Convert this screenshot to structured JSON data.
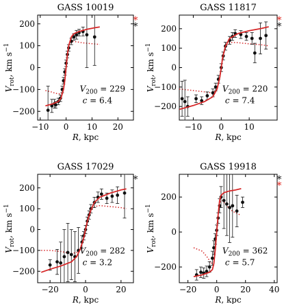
{
  "figure": {
    "colors": {
      "axis": "#000000",
      "model": "#d62728",
      "points": "#111111",
      "asterisk_red": "#e0211a",
      "asterisk_black": "#111111"
    }
  },
  "chart_data": [
    {
      "type": "scatter",
      "title": "GASS 10019",
      "xlabel": "R, kpc",
      "ylabel": "V_rot, km s^-1",
      "xlim": [
        -11,
        26
      ],
      "ylim": [
        -240,
        240
      ],
      "xticks": [
        -10,
        0,
        10,
        20
      ],
      "xtick_labels": [
        "−10",
        "0",
        "10",
        "20"
      ],
      "yticks": [
        -200,
        -100,
        0,
        100,
        200
      ],
      "ytick_labels": [
        "−200",
        "−100",
        "0",
        "100",
        "200"
      ],
      "annotation_v200": "V200 = 229",
      "annotation_v200_value": "229",
      "annotation_c": "c = 6.4",
      "annotation_c_value": "6.4",
      "asterisks": [
        "red",
        "black"
      ],
      "points": [
        {
          "x": -7,
          "y": -195,
          "err": 110
        },
        {
          "x": -5.5,
          "y": -175,
          "err": 30
        },
        {
          "x": -4.5,
          "y": -165,
          "err": 20
        },
        {
          "x": -4,
          "y": -170,
          "err": 15
        },
        {
          "x": -3,
          "y": -155,
          "err": 15
        },
        {
          "x": -2.2,
          "y": -140,
          "err": 15
        },
        {
          "x": -1.5,
          "y": -100,
          "err": 15
        },
        {
          "x": -1,
          "y": -60,
          "err": 15
        },
        {
          "x": -0.5,
          "y": -20,
          "err": 15
        },
        {
          "x": 0,
          "y": 20,
          "err": 15
        },
        {
          "x": 0.5,
          "y": 60,
          "err": 15
        },
        {
          "x": 1,
          "y": 90,
          "err": 15
        },
        {
          "x": 2,
          "y": 120,
          "err": 15
        },
        {
          "x": 3,
          "y": 140,
          "err": 15
        },
        {
          "x": 4,
          "y": 150,
          "err": 20
        },
        {
          "x": 5,
          "y": 160,
          "err": 15
        },
        {
          "x": 6.5,
          "y": 165,
          "err": 20
        },
        {
          "x": 8,
          "y": 150,
          "err": 150
        },
        {
          "x": 11,
          "y": 140,
          "err": 130
        }
      ],
      "model_curve": [
        [
          -8,
          -175
        ],
        [
          -5,
          -165
        ],
        [
          -3,
          -155
        ],
        [
          -2,
          -140
        ],
        [
          -1,
          -100
        ],
        [
          -0.5,
          -60
        ],
        [
          0,
          0
        ],
        [
          0.5,
          60
        ],
        [
          1,
          100
        ],
        [
          2,
          140
        ],
        [
          3,
          155
        ],
        [
          5,
          165
        ],
        [
          8,
          175
        ],
        [
          11,
          182
        ],
        [
          13,
          186
        ]
      ],
      "dotted_curve": [
        [
          -8,
          -105
        ],
        [
          -6,
          -110
        ],
        [
          -4,
          -118
        ],
        [
          -2,
          -120
        ],
        [
          -1,
          -100
        ],
        [
          -0.5,
          -60
        ],
        [
          0,
          0
        ],
        [
          0.5,
          60
        ],
        [
          1,
          100
        ],
        [
          2,
          120
        ],
        [
          4,
          118
        ],
        [
          6,
          114
        ],
        [
          9,
          110
        ],
        [
          13,
          106
        ]
      ]
    },
    {
      "type": "scatter",
      "title": "GASS 11817",
      "xlabel": "R, kpc",
      "ylabel": "V_rot, km s^-1",
      "xlim": [
        -15,
        20
      ],
      "ylim": [
        -270,
        270
      ],
      "xticks": [
        -10,
        0,
        10
      ],
      "xtick_labels": [
        "−10",
        "0",
        "10"
      ],
      "yticks": [
        -200,
        -100,
        0,
        100,
        200
      ],
      "ytick_labels": [
        "−200",
        "−100",
        "0",
        "100",
        "200"
      ],
      "annotation_v200": "V200 = 220",
      "annotation_v200_value": "220",
      "annotation_c": "c = 7.4",
      "annotation_c_value": "7.4",
      "asterisks": [
        "red",
        "black"
      ],
      "points": [
        {
          "x": -14,
          "y": -160,
          "err": 90
        },
        {
          "x": -13,
          "y": -175,
          "err": 110
        },
        {
          "x": -12,
          "y": -200,
          "err": 50
        },
        {
          "x": -9,
          "y": -160,
          "err": 20
        },
        {
          "x": -7,
          "y": -170,
          "err": 20
        },
        {
          "x": -5,
          "y": -145,
          "err": 20
        },
        {
          "x": -3,
          "y": -130,
          "err": 20
        },
        {
          "x": -2,
          "y": -100,
          "err": 20
        },
        {
          "x": -1,
          "y": -60,
          "err": 20
        },
        {
          "x": 0,
          "y": 0,
          "err": 20
        },
        {
          "x": 0.7,
          "y": 60,
          "err": 20
        },
        {
          "x": 1.5,
          "y": 110,
          "err": 20
        },
        {
          "x": 3,
          "y": 140,
          "err": 20
        },
        {
          "x": 4,
          "y": 160,
          "err": 20
        },
        {
          "x": 5,
          "y": 175,
          "err": 20
        },
        {
          "x": 7,
          "y": 170,
          "err": 20
        },
        {
          "x": 9,
          "y": 160,
          "err": 20
        },
        {
          "x": 11,
          "y": 150,
          "err": 30
        },
        {
          "x": 12,
          "y": 75,
          "err": 50
        },
        {
          "x": 14,
          "y": 150,
          "err": 80
        },
        {
          "x": 16,
          "y": 165,
          "err": 70
        }
      ],
      "model_curve": [
        [
          -15,
          -215
        ],
        [
          -10,
          -195
        ],
        [
          -6,
          -175
        ],
        [
          -3,
          -150
        ],
        [
          -1.5,
          -110
        ],
        [
          -0.5,
          -50
        ],
        [
          0,
          0
        ],
        [
          0.5,
          50
        ],
        [
          1.5,
          110
        ],
        [
          3,
          150
        ],
        [
          6,
          175
        ],
        [
          10,
          190
        ],
        [
          14,
          200
        ],
        [
          17,
          210
        ]
      ],
      "dotted_curve": [
        [
          -15,
          -110
        ],
        [
          -10,
          -118
        ],
        [
          -6,
          -125
        ],
        [
          -3,
          -130
        ],
        [
          -1.5,
          -110
        ],
        [
          -0.5,
          -50
        ],
        [
          0,
          0
        ],
        [
          0.5,
          50
        ],
        [
          1.5,
          110
        ],
        [
          3,
          130
        ],
        [
          6,
          128
        ],
        [
          10,
          122
        ],
        [
          14,
          118
        ],
        [
          17,
          112
        ]
      ]
    },
    {
      "type": "scatter",
      "title": "GASS 17029",
      "xlabel": "R, kpc",
      "ylabel": "V_rot, km s^-1",
      "xlim": [
        -27,
        27
      ],
      "ylim": [
        -255,
        265
      ],
      "xticks": [
        -20,
        0,
        20
      ],
      "xtick_labels": [
        "−20",
        "0",
        "20"
      ],
      "yticks": [
        -200,
        -100,
        0,
        100,
        200
      ],
      "ytick_labels": [
        "−200",
        "−100",
        "0",
        "100",
        "200"
      ],
      "annotation_v200": "V200 = 282",
      "annotation_v200_value": "282",
      "annotation_c": "c = 3.2",
      "annotation_c_value": "3.2",
      "asterisks": [
        "black"
      ],
      "points": [
        {
          "x": -20,
          "y": -170,
          "err": 25
        },
        {
          "x": -16,
          "y": -155,
          "err": 60
        },
        {
          "x": -14,
          "y": -160,
          "err": 100
        },
        {
          "x": -12,
          "y": -130,
          "err": 130
        },
        {
          "x": -10,
          "y": -110,
          "err": 140
        },
        {
          "x": -8,
          "y": -120,
          "err": 120
        },
        {
          "x": -6,
          "y": -130,
          "err": 120
        },
        {
          "x": -4,
          "y": -100,
          "err": 110
        },
        {
          "x": -2,
          "y": -60,
          "err": 30
        },
        {
          "x": -1,
          "y": -30,
          "err": 20
        },
        {
          "x": 0,
          "y": 0,
          "err": 20
        },
        {
          "x": 1,
          "y": 40,
          "err": 20
        },
        {
          "x": 2,
          "y": 70,
          "err": 20
        },
        {
          "x": 3,
          "y": 100,
          "err": 20
        },
        {
          "x": 5,
          "y": 130,
          "err": 25
        },
        {
          "x": 7,
          "y": 155,
          "err": 25
        },
        {
          "x": 9,
          "y": 170,
          "err": 25
        },
        {
          "x": 12,
          "y": 150,
          "err": 25
        },
        {
          "x": 15,
          "y": 160,
          "err": 30
        },
        {
          "x": 18,
          "y": 165,
          "err": 40
        },
        {
          "x": 22,
          "y": 175,
          "err": 120
        }
      ],
      "model_curve": [
        [
          -25,
          -205
        ],
        [
          -20,
          -190
        ],
        [
          -14,
          -175
        ],
        [
          -8,
          -155
        ],
        [
          -5,
          -130
        ],
        [
          -3,
          -95
        ],
        [
          -1,
          -40
        ],
        [
          0,
          0
        ],
        [
          1,
          40
        ],
        [
          3,
          95
        ],
        [
          5,
          130
        ],
        [
          8,
          155
        ],
        [
          14,
          175
        ],
        [
          20,
          190
        ],
        [
          23,
          195
        ]
      ],
      "dotted_curve": [
        [
          -25,
          -100
        ],
        [
          -20,
          -100
        ],
        [
          -14,
          -105
        ],
        [
          -8,
          -115
        ],
        [
          -5,
          -110
        ],
        [
          -3,
          -90
        ],
        [
          -1,
          -40
        ],
        [
          0,
          0
        ],
        [
          1,
          40
        ],
        [
          3,
          90
        ],
        [
          5,
          110
        ],
        [
          8,
          115
        ],
        [
          14,
          110
        ],
        [
          20,
          105
        ],
        [
          23,
          100
        ]
      ]
    },
    {
      "type": "scatter",
      "title": "GASS 19918",
      "xlabel": "R, kpc",
      "ylabel": "V_rot, km s^-1",
      "xlim": [
        -26,
        42
      ],
      "ylim": [
        -290,
        330
      ],
      "xticks": [
        -20,
        0,
        20,
        40
      ],
      "xtick_labels": [
        "−20",
        "0",
        "20",
        "40"
      ],
      "yticks": [
        -200,
        0,
        200
      ],
      "ytick_labels": [
        "−200",
        "0",
        "200"
      ],
      "annotation_v200": "V200 = 362",
      "annotation_v200_value": "362",
      "annotation_c": "c = 5.7",
      "annotation_c_value": "5.7",
      "asterisks": [
        "black",
        "red"
      ],
      "points": [
        {
          "x": -14,
          "y": -245,
          "err": 30
        },
        {
          "x": -11,
          "y": -230,
          "err": 30
        },
        {
          "x": -9,
          "y": -235,
          "err": 30
        },
        {
          "x": -7,
          "y": -225,
          "err": 30
        },
        {
          "x": -5,
          "y": -200,
          "err": 30
        },
        {
          "x": -3,
          "y": -150,
          "err": 40
        },
        {
          "x": -2,
          "y": -90,
          "err": 40
        },
        {
          "x": -1,
          "y": -40,
          "err": 30
        },
        {
          "x": 0,
          "y": 10,
          "err": 30
        },
        {
          "x": 1,
          "y": 80,
          "err": 30
        },
        {
          "x": 2,
          "y": 150,
          "err": 40
        },
        {
          "x": 3,
          "y": 200,
          "err": 60
        },
        {
          "x": 5,
          "y": 180,
          "err": 160
        },
        {
          "x": 7,
          "y": 160,
          "err": 180
        },
        {
          "x": 9,
          "y": 140,
          "err": 200
        },
        {
          "x": 11,
          "y": 150,
          "err": 180
        },
        {
          "x": 14,
          "y": 120,
          "err": 90
        },
        {
          "x": 18,
          "y": 170,
          "err": 30
        }
      ],
      "model_curve": [
        [
          -16,
          -255
        ],
        [
          -10,
          -245
        ],
        [
          -5,
          -230
        ],
        [
          -3,
          -215
        ],
        [
          -2,
          -180
        ],
        [
          -1,
          -100
        ],
        [
          0,
          0
        ],
        [
          1,
          100
        ],
        [
          2,
          180
        ],
        [
          3,
          210
        ],
        [
          5,
          225
        ],
        [
          9,
          235
        ],
        [
          13,
          240
        ],
        [
          17,
          248
        ]
      ],
      "dotted_curve": [
        [
          -16,
          -90
        ],
        [
          -10,
          -110
        ],
        [
          -6,
          -150
        ],
        [
          -4,
          -180
        ],
        [
          -2,
          -170
        ],
        [
          -1,
          -100
        ],
        [
          0,
          0
        ],
        [
          1,
          100
        ],
        [
          2,
          170
        ],
        [
          4,
          180
        ],
        [
          7,
          150
        ],
        [
          10,
          125
        ],
        [
          13,
          110
        ],
        [
          17,
          95
        ]
      ]
    }
  ]
}
